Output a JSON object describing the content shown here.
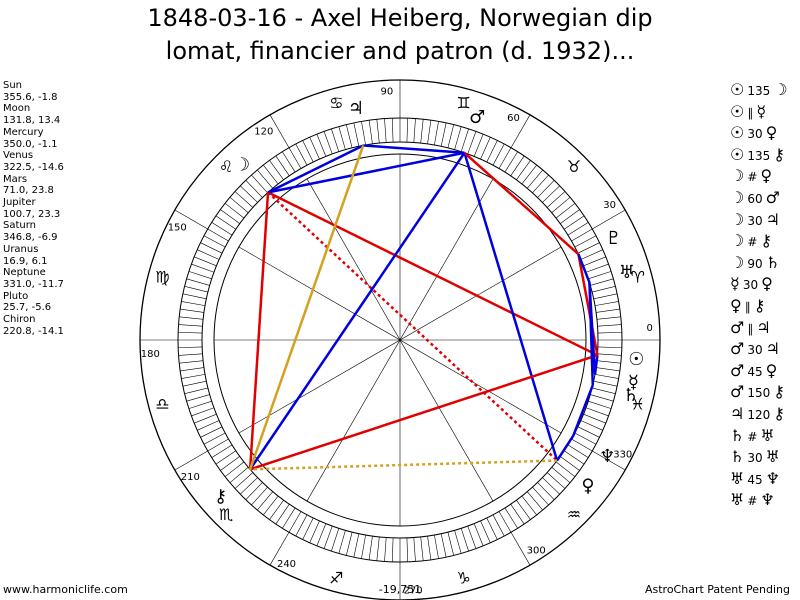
{
  "title": {
    "line1": "1848-03-16 - Axel Heiberg, Norwegian dip",
    "line2": "lomat, financier and patron (d. 1932)..."
  },
  "planets": [
    {
      "name": "Sun",
      "coords": "355.6, -1.8",
      "glyph": "☉",
      "lon": 355.6
    },
    {
      "name": "Moon",
      "coords": "131.8, 13.4",
      "glyph": "☽",
      "lon": 131.8
    },
    {
      "name": "Mercury",
      "coords": "350.0, -1.1",
      "glyph": "☿",
      "lon": 350.0
    },
    {
      "name": "Venus",
      "coords": "322.5, -14.6",
      "glyph": "♀",
      "lon": 322.5
    },
    {
      "name": "Mars",
      "coords": "71.0, 23.8",
      "glyph": "♂",
      "lon": 71.0
    },
    {
      "name": "Jupiter",
      "coords": "100.7, 23.3",
      "glyph": "♃",
      "lon": 100.7
    },
    {
      "name": "Saturn",
      "coords": "346.8, -6.9",
      "glyph": "♄",
      "lon": 346.8
    },
    {
      "name": "Uranus",
      "coords": "16.9, 6.1",
      "glyph": "♅",
      "lon": 16.9
    },
    {
      "name": "Neptune",
      "coords": "331.0, -11.7",
      "glyph": "♆",
      "lon": 331.0
    },
    {
      "name": "Pluto",
      "coords": "25.7, -5.6",
      "glyph": "♇",
      "lon": 25.7
    },
    {
      "name": "Chiron",
      "coords": "220.8, -14.1",
      "glyph": "⚷",
      "lon": 220.8
    }
  ],
  "aspects": [
    {
      "p1": "☉",
      "deg": "135",
      "p2": "☽"
    },
    {
      "p1": "☉",
      "deg": "∥",
      "p2": "☿"
    },
    {
      "p1": "☉",
      "deg": "30",
      "p2": "♀"
    },
    {
      "p1": "☉",
      "deg": "135",
      "p2": "⚷"
    },
    {
      "p1": "☽",
      "deg": "#",
      "p2": "♀"
    },
    {
      "p1": "☽",
      "deg": "60",
      "p2": "♂"
    },
    {
      "p1": "☽",
      "deg": "30",
      "p2": "♃"
    },
    {
      "p1": "☽",
      "deg": "#",
      "p2": "⚷"
    },
    {
      "p1": "☽",
      "deg": "90",
      "p2": "♄"
    },
    {
      "p1": "☿",
      "deg": "30",
      "p2": "♀"
    },
    {
      "p1": "♀",
      "deg": "∥",
      "p2": "⚷"
    },
    {
      "p1": "♂",
      "deg": "∥",
      "p2": "♃"
    },
    {
      "p1": "♂",
      "deg": "30",
      "p2": "♃"
    },
    {
      "p1": "♂",
      "deg": "45",
      "p2": "♀"
    },
    {
      "p1": "♂",
      "deg": "150",
      "p2": "⚷"
    },
    {
      "p1": "♃",
      "deg": "120",
      "p2": "⚷"
    },
    {
      "p1": "♄",
      "deg": "#",
      "p2": "♅"
    },
    {
      "p1": "♄",
      "deg": "30",
      "p2": "♅"
    },
    {
      "p1": "♅",
      "deg": "45",
      "p2": "♆"
    },
    {
      "p1": "♅",
      "deg": "#",
      "p2": "♆"
    }
  ],
  "wheel": {
    "degree_labels": [
      "0",
      "30",
      "60",
      "90",
      "120",
      "150",
      "180",
      "210",
      "240",
      "270",
      "300",
      "330"
    ],
    "signs": [
      "♈",
      "♉",
      "♊",
      "♋",
      "♌",
      "♍",
      "♎",
      "♏",
      "♐",
      "♑",
      "♒",
      "♓"
    ]
  },
  "chart_lines": [
    {
      "from": "Moon",
      "to": "Sun",
      "color": "#e00000",
      "style": "solid"
    },
    {
      "from": "Moon",
      "to": "Venus",
      "color": "#e00000",
      "style": "dotted"
    },
    {
      "from": "Moon",
      "to": "Mars",
      "color": "#0000dd",
      "style": "solid"
    },
    {
      "from": "Moon",
      "to": "Jupiter",
      "color": "#0000dd",
      "style": "solid"
    },
    {
      "from": "Moon",
      "to": "Chiron",
      "color": "#e00000",
      "style": "solid"
    },
    {
      "from": "Mars",
      "to": "Jupiter",
      "color": "#0000dd",
      "style": "solid"
    },
    {
      "from": "Mars",
      "to": "Venus",
      "color": "#0000dd",
      "style": "solid"
    },
    {
      "from": "Mars",
      "to": "Pluto",
      "color": "#e00000",
      "style": "solid"
    },
    {
      "from": "Mars",
      "to": "Chiron",
      "color": "#0000dd",
      "style": "solid"
    },
    {
      "from": "Pluto",
      "to": "Sun",
      "color": "#e00000",
      "style": "solid"
    },
    {
      "from": "Pluto",
      "to": "Uranus",
      "color": "#0000dd",
      "style": "solid"
    },
    {
      "from": "Sun",
      "to": "Mercury",
      "color": "#0000dd",
      "style": "solid"
    },
    {
      "from": "Sun",
      "to": "Chiron",
      "color": "#e00000",
      "style": "solid"
    },
    {
      "from": "Uranus",
      "to": "Saturn",
      "color": "#0000dd",
      "style": "solid"
    },
    {
      "from": "Uranus",
      "to": "Mercury",
      "color": "#0000dd",
      "style": "solid"
    },
    {
      "from": "Saturn",
      "to": "Neptune",
      "color": "#0000dd",
      "style": "solid"
    },
    {
      "from": "Neptune",
      "to": "Venus",
      "color": "#0000dd",
      "style": "solid"
    },
    {
      "from": "Jupiter",
      "to": "Chiron",
      "color": "#d4a020",
      "style": "solid"
    },
    {
      "from": "Venus",
      "to": "Chiron",
      "color": "#d4a020",
      "style": "dotted"
    }
  ],
  "footer": {
    "left": "www.harmoniclife.com",
    "mid": "-19,751",
    "right": "AstroChart Patent Pending"
  }
}
